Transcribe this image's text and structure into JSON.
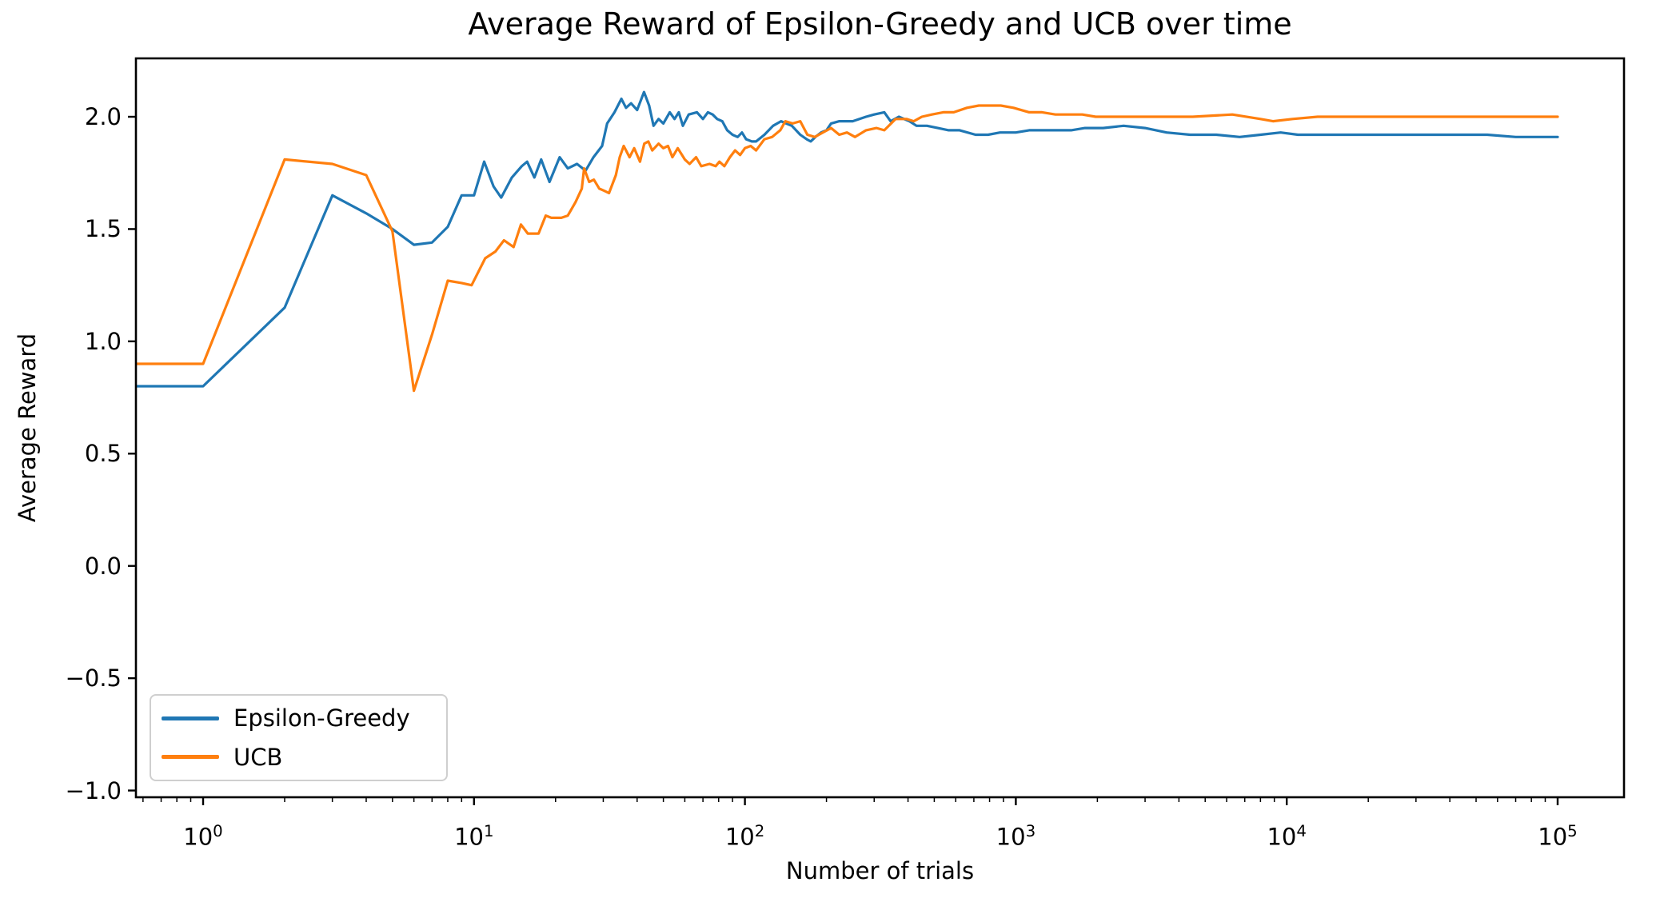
{
  "chart_data": {
    "type": "line",
    "title": "Average Reward of Epsilon-Greedy and UCB over time",
    "xlabel": "Number of trials",
    "ylabel": "Average Reward",
    "x_scale": "log10",
    "grid": false,
    "xlim": [
      0.565,
      175800
    ],
    "ylim": [
      -1.03,
      2.26
    ],
    "x_tick_base": "10",
    "x_tick_exponents": [
      0,
      1,
      2,
      3,
      4,
      5
    ],
    "y_ticks": [
      -1.0,
      -0.5,
      0.0,
      0.5,
      1.0,
      1.5,
      2.0
    ],
    "y_tick_labels": [
      "−1.0",
      "−0.5",
      "0.0",
      "0.5",
      "1.0",
      "1.5",
      "2.0"
    ],
    "axis_color": "#000000",
    "background_color": "#ffffff",
    "legend": {
      "position": "lower left",
      "border_color": "#cfcfcf",
      "entries": [
        {
          "label": "Epsilon-Greedy",
          "color": "#1f77b4"
        },
        {
          "label": "UCB",
          "color": "#ff7f0e"
        }
      ]
    },
    "series": [
      {
        "name": "Epsilon-Greedy",
        "color": "#1f77b4",
        "points": [
          [
            0.565,
            0.8
          ],
          [
            1,
            0.8
          ],
          [
            2,
            1.15
          ],
          [
            3,
            1.65
          ],
          [
            4,
            1.57
          ],
          [
            5,
            1.5
          ],
          [
            6,
            1.43
          ],
          [
            7,
            1.44
          ],
          [
            8,
            1.51
          ],
          [
            9,
            1.65
          ],
          [
            10,
            1.65
          ],
          [
            10.9,
            1.8
          ],
          [
            11.8,
            1.69
          ],
          [
            12.6,
            1.64
          ],
          [
            13.8,
            1.73
          ],
          [
            15,
            1.78
          ],
          [
            15.7,
            1.8
          ],
          [
            16.7,
            1.73
          ],
          [
            17.7,
            1.81
          ],
          [
            19,
            1.71
          ],
          [
            20.7,
            1.82
          ],
          [
            22.2,
            1.77
          ],
          [
            24,
            1.79
          ],
          [
            25.8,
            1.76
          ],
          [
            27.6,
            1.82
          ],
          [
            29.7,
            1.87
          ],
          [
            31,
            1.97
          ],
          [
            33,
            2.02
          ],
          [
            35,
            2.08
          ],
          [
            36.4,
            2.04
          ],
          [
            38,
            2.06
          ],
          [
            40,
            2.03
          ],
          [
            42.4,
            2.11
          ],
          [
            44.3,
            2.05
          ],
          [
            46,
            1.96
          ],
          [
            48,
            1.99
          ],
          [
            50,
            1.97
          ],
          [
            52.8,
            2.02
          ],
          [
            55,
            1.99
          ],
          [
            57,
            2.02
          ],
          [
            59,
            1.96
          ],
          [
            62,
            2.01
          ],
          [
            66.5,
            2.02
          ],
          [
            70,
            1.99
          ],
          [
            73,
            2.02
          ],
          [
            76,
            2.01
          ],
          [
            79,
            1.99
          ],
          [
            82.5,
            1.98
          ],
          [
            86,
            1.94
          ],
          [
            90,
            1.92
          ],
          [
            94,
            1.91
          ],
          [
            97.5,
            1.93
          ],
          [
            101,
            1.9
          ],
          [
            106,
            1.89
          ],
          [
            110,
            1.89
          ],
          [
            118,
            1.92
          ],
          [
            127,
            1.96
          ],
          [
            136,
            1.98
          ],
          [
            142,
            1.97
          ],
          [
            149,
            1.96
          ],
          [
            160,
            1.92
          ],
          [
            169,
            1.9
          ],
          [
            175,
            1.89
          ],
          [
            182,
            1.91
          ],
          [
            191,
            1.93
          ],
          [
            200,
            1.94
          ],
          [
            208,
            1.97
          ],
          [
            223,
            1.98
          ],
          [
            250,
            1.98
          ],
          [
            280,
            2.0
          ],
          [
            300,
            2.01
          ],
          [
            327,
            2.02
          ],
          [
            345,
            1.98
          ],
          [
            370,
            2.0
          ],
          [
            405,
            1.98
          ],
          [
            430,
            1.96
          ],
          [
            470,
            1.96
          ],
          [
            515,
            1.95
          ],
          [
            565,
            1.94
          ],
          [
            620,
            1.94
          ],
          [
            710,
            1.92
          ],
          [
            790,
            1.92
          ],
          [
            875,
            1.93
          ],
          [
            1000,
            1.93
          ],
          [
            1120,
            1.94
          ],
          [
            1250,
            1.94
          ],
          [
            1400,
            1.94
          ],
          [
            1600,
            1.94
          ],
          [
            1800,
            1.95
          ],
          [
            2100,
            1.95
          ],
          [
            2500,
            1.96
          ],
          [
            3000,
            1.95
          ],
          [
            3600,
            1.93
          ],
          [
            4400,
            1.92
          ],
          [
            5500,
            1.92
          ],
          [
            6700,
            1.91
          ],
          [
            8000,
            1.92
          ],
          [
            9500,
            1.93
          ],
          [
            11000,
            1.92
          ],
          [
            14000,
            1.92
          ],
          [
            18000,
            1.92
          ],
          [
            24000,
            1.92
          ],
          [
            32000,
            1.92
          ],
          [
            42000,
            1.92
          ],
          [
            55000,
            1.92
          ],
          [
            70000,
            1.91
          ],
          [
            85000,
            1.91
          ],
          [
            100000,
            1.91
          ]
        ]
      },
      {
        "name": "UCB",
        "color": "#ff7f0e",
        "points": [
          [
            0.565,
            0.9
          ],
          [
            1,
            0.9
          ],
          [
            2,
            1.81
          ],
          [
            3,
            1.79
          ],
          [
            4,
            1.74
          ],
          [
            5,
            1.49
          ],
          [
            6,
            0.78
          ],
          [
            7,
            1.03
          ],
          [
            8,
            1.27
          ],
          [
            9,
            1.26
          ],
          [
            9.8,
            1.25
          ],
          [
            11,
            1.37
          ],
          [
            12,
            1.4
          ],
          [
            12.9,
            1.45
          ],
          [
            14,
            1.42
          ],
          [
            14.9,
            1.52
          ],
          [
            15.8,
            1.48
          ],
          [
            17.3,
            1.48
          ],
          [
            18.4,
            1.56
          ],
          [
            19.3,
            1.55
          ],
          [
            21,
            1.55
          ],
          [
            22.2,
            1.56
          ],
          [
            23.7,
            1.62
          ],
          [
            25,
            1.68
          ],
          [
            25.5,
            1.77
          ],
          [
            26.6,
            1.71
          ],
          [
            27.7,
            1.72
          ],
          [
            29,
            1.68
          ],
          [
            30.3,
            1.67
          ],
          [
            31.5,
            1.66
          ],
          [
            33.4,
            1.74
          ],
          [
            34.5,
            1.82
          ],
          [
            35.7,
            1.87
          ],
          [
            37.5,
            1.82
          ],
          [
            39,
            1.86
          ],
          [
            41,
            1.8
          ],
          [
            42.5,
            1.88
          ],
          [
            44,
            1.89
          ],
          [
            45.5,
            1.85
          ],
          [
            48,
            1.88
          ],
          [
            50,
            1.86
          ],
          [
            52,
            1.87
          ],
          [
            54,
            1.82
          ],
          [
            56.5,
            1.86
          ],
          [
            60,
            1.81
          ],
          [
            62.5,
            1.79
          ],
          [
            66,
            1.82
          ],
          [
            69,
            1.78
          ],
          [
            74,
            1.79
          ],
          [
            78,
            1.78
          ],
          [
            80.5,
            1.8
          ],
          [
            84,
            1.78
          ],
          [
            88,
            1.82
          ],
          [
            92,
            1.85
          ],
          [
            96,
            1.83
          ],
          [
            100,
            1.86
          ],
          [
            105,
            1.87
          ],
          [
            110,
            1.85
          ],
          [
            118,
            1.9
          ],
          [
            126,
            1.91
          ],
          [
            135,
            1.94
          ],
          [
            141,
            1.98
          ],
          [
            150,
            1.97
          ],
          [
            160,
            1.98
          ],
          [
            170,
            1.92
          ],
          [
            181,
            1.91
          ],
          [
            194,
            1.93
          ],
          [
            208,
            1.95
          ],
          [
            223,
            1.92
          ],
          [
            238,
            1.93
          ],
          [
            255,
            1.91
          ],
          [
            280,
            1.94
          ],
          [
            306,
            1.95
          ],
          [
            327,
            1.94
          ],
          [
            360,
            1.99
          ],
          [
            395,
            1.99
          ],
          [
            420,
            1.98
          ],
          [
            450,
            2.0
          ],
          [
            490,
            2.01
          ],
          [
            540,
            2.02
          ],
          [
            590,
            2.02
          ],
          [
            660,
            2.04
          ],
          [
            730,
            2.05
          ],
          [
            880,
            2.05
          ],
          [
            980,
            2.04
          ],
          [
            1120,
            2.02
          ],
          [
            1250,
            2.02
          ],
          [
            1400,
            2.01
          ],
          [
            1570,
            2.01
          ],
          [
            1760,
            2.01
          ],
          [
            1970,
            2.0
          ],
          [
            2400,
            2.0
          ],
          [
            3200,
            2.0
          ],
          [
            4500,
            2.0
          ],
          [
            6300,
            2.01
          ],
          [
            8000,
            1.99
          ],
          [
            8900,
            1.98
          ],
          [
            10500,
            1.99
          ],
          [
            13000,
            2.0
          ],
          [
            17000,
            2.0
          ],
          [
            22000,
            2.0
          ],
          [
            30000,
            2.0
          ],
          [
            40000,
            2.0
          ],
          [
            55000,
            2.0
          ],
          [
            75000,
            2.0
          ],
          [
            100000,
            2.0
          ]
        ]
      }
    ]
  }
}
